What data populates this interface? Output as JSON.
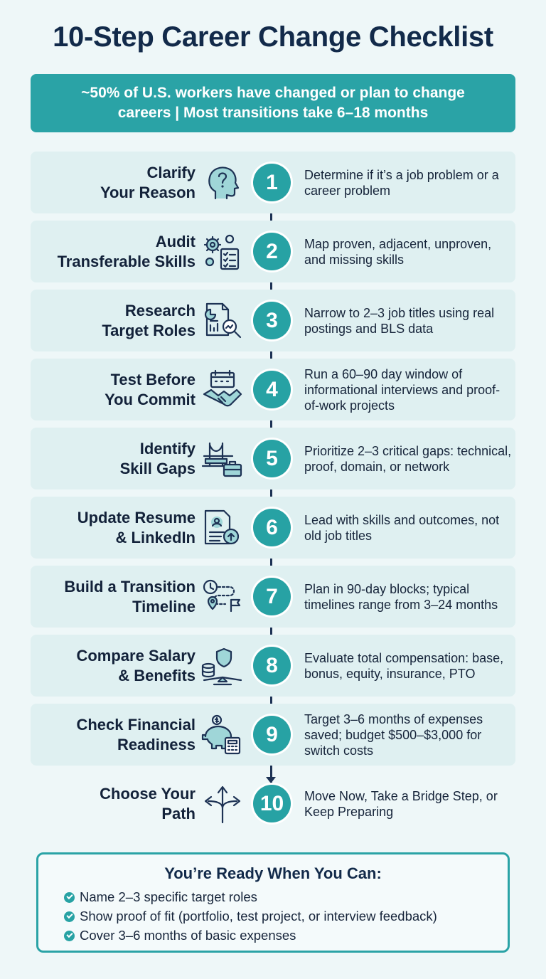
{
  "title": "10-Step Career Change Checklist",
  "banner": {
    "line1": "~50% of U.S. workers have changed or plan to change",
    "line2": "careers  |  Most transitions take 6–18 months"
  },
  "colors": {
    "accent": "#2aa3a6",
    "navy": "#122a4a",
    "row_bg": "#dff0f1"
  },
  "steps": [
    {
      "num": "1",
      "title": [
        "Clarify",
        "Your Reason"
      ],
      "icon": "head-question-icon",
      "desc": "Determine if it’s a job problem or a career problem"
    },
    {
      "num": "2",
      "title": [
        "Audit",
        "Transferable Skills"
      ],
      "icon": "gears-checklist-icon",
      "desc": "Map proven, adjacent, unproven, and missing skills"
    },
    {
      "num": "3",
      "title": [
        "Research",
        "Target Roles"
      ],
      "icon": "report-magnifier-icon",
      "desc": "Narrow to 2–3 job titles using real postings and BLS data"
    },
    {
      "num": "4",
      "title": [
        "Test Before",
        "You Commit"
      ],
      "icon": "calendar-handshake-icon",
      "desc": "Run a 60–90 day window of informational interviews and proof-of-work projects"
    },
    {
      "num": "5",
      "title": [
        "Identify",
        "Skill Gaps"
      ],
      "icon": "bridge-briefcase-icon",
      "desc": "Prioritize 2–3 critical gaps: technical, proof, domain, or network"
    },
    {
      "num": "6",
      "title": [
        "Update Resume",
        "& LinkedIn"
      ],
      "icon": "resume-upload-icon",
      "desc": "Lead with skills and outcomes, not old job titles"
    },
    {
      "num": "7",
      "title": [
        "Build a Transition",
        "Timeline"
      ],
      "icon": "clock-route-flag-icon",
      "desc": "Plan in 90-day blocks; typical timelines range from 3–24 months"
    },
    {
      "num": "8",
      "title": [
        "Compare Salary",
        "& Benefits"
      ],
      "icon": "coins-shield-scale-icon",
      "desc": "Evaluate total compensation: base, bonus, equity, insurance, PTO"
    },
    {
      "num": "9",
      "title": [
        "Check Financial",
        "Readiness"
      ],
      "icon": "piggybank-calculator-icon",
      "desc": "Target 3–6 months of expenses saved; budget $500–$3,000 for switch costs"
    },
    {
      "num": "10",
      "title": [
        "Choose Your",
        "Path"
      ],
      "icon": "split-arrows-icon",
      "desc": "Move Now, Take a Bridge Step, or Keep Preparing"
    }
  ],
  "ready": {
    "title": "You’re Ready When You Can:",
    "items": [
      "Name 2–3 specific target roles",
      "Show proof of fit (portfolio, test project, or interview feedback)",
      "Cover 3–6 months of basic expenses"
    ]
  }
}
